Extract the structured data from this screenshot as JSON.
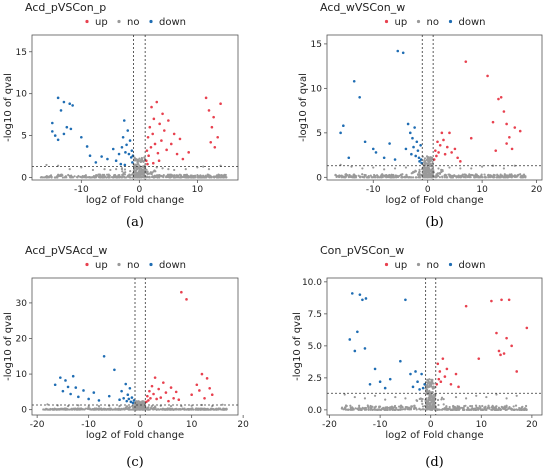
{
  "legend": {
    "up": "up",
    "no": "no",
    "down": "down"
  },
  "colors": {
    "up": "#e8414f",
    "no": "#9a9a9a",
    "down": "#1f6db3",
    "frame": "#555555",
    "guide": "#333333"
  },
  "chart_data": [
    {
      "type": "scatter",
      "caption": "(a)",
      "title": "Acd_pVSCon_p",
      "xlabel": "log2 of Fold change",
      "ylabel": "-log10 of qval",
      "xlim": [
        -18.5,
        17
      ],
      "ylim": [
        -0.3,
        17
      ],
      "xticks": [
        -10,
        0,
        10
      ],
      "yticks": [
        0,
        5,
        10,
        15
      ],
      "ytick_labels": [
        "0",
        "5",
        "10",
        "15"
      ],
      "thresholds": {
        "x": [
          -1,
          1
        ],
        "y": 1.3
      },
      "down_points": [
        [
          -15,
          5.5
        ],
        [
          -15,
          6.5
        ],
        [
          -14.5,
          5.0
        ],
        [
          -14,
          9.5
        ],
        [
          -13.5,
          8.0
        ],
        [
          -13,
          9.0
        ],
        [
          -12,
          8.8
        ],
        [
          -11.5,
          8.6
        ],
        [
          -13,
          5.2
        ],
        [
          -12.5,
          6.0
        ],
        [
          -11.8,
          5.8
        ],
        [
          -14,
          4.5
        ],
        [
          -10,
          4.8
        ],
        [
          -9,
          3.7
        ],
        [
          -8.5,
          2.6
        ],
        [
          -7.5,
          1.8
        ],
        [
          -6.5,
          2.5
        ],
        [
          -5.5,
          2.2
        ],
        [
          -4.5,
          3.4
        ],
        [
          -4,
          2.0
        ],
        [
          -3.5,
          2.8
        ],
        [
          -3,
          3.6
        ],
        [
          -2.8,
          4.8
        ],
        [
          -2.6,
          6.8
        ],
        [
          -2.4,
          3.0
        ],
        [
          -2.2,
          3.9
        ],
        [
          -2,
          5.6
        ],
        [
          -1.8,
          2.8
        ],
        [
          -1.6,
          4.4
        ],
        [
          -1.4,
          2.4
        ],
        [
          -1.3,
          3.2
        ],
        [
          -1.2,
          1.8
        ],
        [
          -1.1,
          2.6
        ],
        [
          -3.2,
          1.6
        ],
        [
          -2.5,
          1.5
        ]
      ],
      "up_points": [
        [
          1.2,
          2.0
        ],
        [
          1.3,
          3.2
        ],
        [
          1.5,
          4.8
        ],
        [
          1.6,
          2.6
        ],
        [
          1.8,
          6.0
        ],
        [
          2,
          3.6
        ],
        [
          2.1,
          8.4
        ],
        [
          2.3,
          5.2
        ],
        [
          2.5,
          7.0
        ],
        [
          2.7,
          4.0
        ],
        [
          3,
          9.0
        ],
        [
          3.2,
          2.9
        ],
        [
          3.5,
          6.4
        ],
        [
          3.8,
          4.4
        ],
        [
          4,
          7.6
        ],
        [
          4.3,
          5.6
        ],
        [
          4.7,
          3.3
        ],
        [
          5,
          6.8
        ],
        [
          5.5,
          4.0
        ],
        [
          6,
          5.2
        ],
        [
          6.5,
          2.8
        ],
        [
          7,
          4.6
        ],
        [
          7.5,
          2.2
        ],
        [
          8.5,
          3.0
        ],
        [
          11.5,
          9.5
        ],
        [
          12,
          8.0
        ],
        [
          12.5,
          6.0
        ],
        [
          12.8,
          7.2
        ],
        [
          13,
          3.6
        ],
        [
          13.5,
          4.8
        ],
        [
          14,
          8.8
        ],
        [
          12.3,
          4.2
        ],
        [
          1.4,
          1.6
        ],
        [
          2.4,
          1.7
        ],
        [
          3.4,
          2.0
        ]
      ],
      "no_spread": [
        [
          -16,
          1.5
        ],
        [
          -14,
          1.4
        ],
        [
          -12,
          1.0
        ],
        [
          -10,
          1.2
        ],
        [
          -8,
          0.9
        ],
        [
          -6,
          1.0
        ],
        [
          -5,
          0.9
        ],
        [
          -4,
          1.0
        ],
        [
          -3,
          1.1
        ],
        [
          3,
          1.2
        ],
        [
          4,
          1.1
        ],
        [
          5,
          1.0
        ],
        [
          6,
          0.9
        ],
        [
          8,
          1.0
        ],
        [
          10,
          1.2
        ],
        [
          11,
          1.3
        ],
        [
          12,
          1.0
        ],
        [
          14,
          1.4
        ]
      ],
      "no_cloud": {
        "x_range": [
          -17,
          15
        ],
        "count": 420,
        "seed": 11
      }
    },
    {
      "type": "scatter",
      "caption": "(b)",
      "title": "Acd_wVSCon_w",
      "xlabel": "log2 of Fold change",
      "ylabel": "-log10 of qval",
      "xlim": [
        -18.5,
        21
      ],
      "ylim": [
        -0.3,
        16
      ],
      "xticks": [
        -10,
        0,
        10,
        20
      ],
      "yticks": [
        0,
        5,
        10,
        15
      ],
      "ytick_labels": [
        "0",
        "5",
        "10",
        "15"
      ],
      "thresholds": {
        "x": [
          -1,
          1
        ],
        "y": 1.3
      },
      "down_points": [
        [
          -16,
          5.0
        ],
        [
          -15.5,
          5.8
        ],
        [
          -14.5,
          2.2
        ],
        [
          -13.5,
          10.8
        ],
        [
          -12.5,
          9.0
        ],
        [
          -11.5,
          4.0
        ],
        [
          -10,
          3.2
        ],
        [
          -9.5,
          2.8
        ],
        [
          -8,
          2.2
        ],
        [
          -7,
          3.8
        ],
        [
          -6,
          2.0
        ],
        [
          -5.5,
          14.2
        ],
        [
          -4.5,
          14.0
        ],
        [
          -4,
          3.2
        ],
        [
          -3.6,
          6.0
        ],
        [
          -3.2,
          5.0
        ],
        [
          -3,
          2.6
        ],
        [
          -2.8,
          4.4
        ],
        [
          -2.6,
          3.4
        ],
        [
          -2.4,
          5.6
        ],
        [
          -2.2,
          2.4
        ],
        [
          -2,
          4.0
        ],
        [
          -1.8,
          3.0
        ],
        [
          -1.6,
          2.2
        ],
        [
          -1.5,
          1.8
        ],
        [
          -1.3,
          3.6
        ],
        [
          -1.2,
          2.0
        ],
        [
          -1.1,
          1.6
        ]
      ],
      "up_points": [
        [
          1.2,
          2.0
        ],
        [
          1.4,
          3.0
        ],
        [
          1.6,
          2.4
        ],
        [
          1.8,
          4.0
        ],
        [
          2,
          2.8
        ],
        [
          2.3,
          3.6
        ],
        [
          2.6,
          5.0
        ],
        [
          2.9,
          4.2
        ],
        [
          3.2,
          2.6
        ],
        [
          3.6,
          3.4
        ],
        [
          4,
          5.0
        ],
        [
          4.4,
          2.8
        ],
        [
          5,
          3.2
        ],
        [
          5.5,
          2.2
        ],
        [
          6,
          1.8
        ],
        [
          7,
          13.0
        ],
        [
          8,
          4.4
        ],
        [
          11,
          11.4
        ],
        [
          12,
          6.2
        ],
        [
          13,
          8.8
        ],
        [
          13.5,
          9.0
        ],
        [
          14,
          7.4
        ],
        [
          14.5,
          6.0
        ],
        [
          15,
          4.5
        ],
        [
          16,
          5.6
        ],
        [
          17,
          5.2
        ],
        [
          15.5,
          3.2
        ],
        [
          12.5,
          3.0
        ],
        [
          14.5,
          3.8
        ]
      ],
      "no_spread": [
        [
          -16,
          1.4
        ],
        [
          -14,
          1.2
        ],
        [
          -12,
          1.0
        ],
        [
          -10,
          1.1
        ],
        [
          -8,
          0.9
        ],
        [
          -6,
          1.0
        ],
        [
          -4,
          1.1
        ],
        [
          4,
          1.1
        ],
        [
          6,
          1.0
        ],
        [
          8,
          1.0
        ],
        [
          10,
          1.2
        ],
        [
          12,
          1.3
        ],
        [
          14,
          1.0
        ],
        [
          16,
          1.3
        ]
      ],
      "no_cloud": {
        "x_range": [
          -17,
          18
        ],
        "count": 420,
        "seed": 23
      }
    },
    {
      "type": "scatter",
      "caption": "(c)",
      "title": "Acd_pVSAcd_w",
      "xlabel": "log2 of Fold change",
      "ylabel": "-log10 of qval",
      "xlim": [
        -21,
        19
      ],
      "ylim": [
        -1.5,
        37
      ],
      "xticks": [
        -20,
        -10,
        0,
        10,
        20
      ],
      "yticks": [
        0,
        10,
        20,
        30
      ],
      "ytick_labels": [
        "0",
        "10",
        "20",
        "30"
      ],
      "thresholds": {
        "x": [
          -1,
          1
        ],
        "y": 1.3
      },
      "down_points": [
        [
          -16.5,
          7.0
        ],
        [
          -15.5,
          9.0
        ],
        [
          -15,
          5.2
        ],
        [
          -14.5,
          8.2
        ],
        [
          -14,
          6.4
        ],
        [
          -13.5,
          4.4
        ],
        [
          -13,
          9.4
        ],
        [
          -12.5,
          6.2
        ],
        [
          -12,
          3.6
        ],
        [
          -11,
          5.4
        ],
        [
          -10,
          3.0
        ],
        [
          -9,
          4.8
        ],
        [
          -8,
          2.6
        ],
        [
          -7,
          15.0
        ],
        [
          -6,
          3.8
        ],
        [
          -5,
          11.2
        ],
        [
          -4,
          2.8
        ],
        [
          -3.6,
          5.2
        ],
        [
          -3.2,
          3.2
        ],
        [
          -2.8,
          7.2
        ],
        [
          -2.6,
          2.4
        ],
        [
          -2.4,
          4.2
        ],
        [
          -2.2,
          3.0
        ],
        [
          -2,
          6.0
        ],
        [
          -1.8,
          2.2
        ],
        [
          -1.6,
          3.4
        ],
        [
          -1.4,
          1.9
        ],
        [
          -1.2,
          2.6
        ]
      ],
      "up_points": [
        [
          1.2,
          2.2
        ],
        [
          1.4,
          3.8
        ],
        [
          1.6,
          2.6
        ],
        [
          1.8,
          5.2
        ],
        [
          2,
          3.2
        ],
        [
          2.3,
          6.6
        ],
        [
          2.6,
          4.4
        ],
        [
          2.9,
          9.0
        ],
        [
          3.2,
          3.0
        ],
        [
          3.6,
          5.8
        ],
        [
          4,
          3.4
        ],
        [
          4.5,
          7.6
        ],
        [
          5,
          4.8
        ],
        [
          5.5,
          2.4
        ],
        [
          6,
          6.2
        ],
        [
          6.5,
          3.2
        ],
        [
          7,
          5.0
        ],
        [
          7.5,
          2.8
        ],
        [
          8,
          33.0
        ],
        [
          9,
          31.0
        ],
        [
          10,
          4.2
        ],
        [
          11,
          7.0
        ],
        [
          12,
          10.0
        ],
        [
          13,
          8.8
        ],
        [
          13.5,
          6.0
        ],
        [
          14,
          4.2
        ],
        [
          12.5,
          3.2
        ],
        [
          11.5,
          5.4
        ]
      ],
      "no_spread": [
        [
          -18,
          1.5
        ],
        [
          -16,
          1.2
        ],
        [
          -14,
          1.0
        ],
        [
          -12,
          1.2
        ],
        [
          -10,
          0.9
        ],
        [
          -8,
          1.0
        ],
        [
          -6,
          1.1
        ],
        [
          -4,
          1.0
        ],
        [
          4,
          1.1
        ],
        [
          6,
          1.0
        ],
        [
          8,
          1.0
        ],
        [
          10,
          1.1
        ],
        [
          12,
          1.3
        ],
        [
          14,
          1.0
        ],
        [
          16,
          1.4
        ]
      ],
      "no_cloud": {
        "x_range": [
          -19,
          17
        ],
        "count": 420,
        "seed": 37
      }
    },
    {
      "type": "scatter",
      "caption": "(d)",
      "title": "Con_pVSCon_w",
      "xlabel": "log2 of Fold change",
      "ylabel": "-log10 of qval",
      "xlim": [
        -20.5,
        22
      ],
      "ylim": [
        -0.4,
        10.3
      ],
      "xticks": [
        -20,
        -10,
        0,
        10,
        20
      ],
      "yticks": [
        0,
        2.5,
        5,
        7.5,
        10
      ],
      "ytick_labels": [
        "0.0",
        "2.5",
        "5.0",
        "7.5",
        "10.0"
      ],
      "thresholds": {
        "x": [
          -1,
          1
        ],
        "y": 1.3
      },
      "down_points": [
        [
          -16,
          5.5
        ],
        [
          -15.5,
          9.1
        ],
        [
          -15,
          4.6
        ],
        [
          -14.5,
          6.1
        ],
        [
          -14,
          9.0
        ],
        [
          -13.5,
          8.6
        ],
        [
          -13,
          4.8
        ],
        [
          -12.8,
          8.7
        ],
        [
          -12,
          2.0
        ],
        [
          -11,
          3.2
        ],
        [
          -10,
          2.2
        ],
        [
          -9,
          1.7
        ],
        [
          -8,
          2.4
        ],
        [
          -6,
          3.8
        ],
        [
          -5,
          8.6
        ],
        [
          -4,
          2.8
        ],
        [
          -3.5,
          1.8
        ],
        [
          -3,
          3.0
        ],
        [
          -2.6,
          2.2
        ],
        [
          -2.2,
          1.6
        ],
        [
          -1.8,
          2.8
        ],
        [
          -1.5,
          1.7
        ],
        [
          -1.2,
          2.0
        ]
      ],
      "up_points": [
        [
          1.2,
          2.0
        ],
        [
          1.4,
          3.6
        ],
        [
          1.6,
          2.4
        ],
        [
          1.8,
          3.0
        ],
        [
          2,
          2.2
        ],
        [
          2.4,
          4.0
        ],
        [
          2.8,
          2.6
        ],
        [
          3.2,
          3.2
        ],
        [
          4,
          2.0
        ],
        [
          5,
          2.8
        ],
        [
          5.5,
          1.8
        ],
        [
          7,
          8.1
        ],
        [
          9.5,
          4.0
        ],
        [
          12,
          8.5
        ],
        [
          13,
          6.0
        ],
        [
          13.5,
          4.6
        ],
        [
          14,
          8.6
        ],
        [
          14.5,
          4.4
        ],
        [
          15,
          5.6
        ],
        [
          16,
          5.0
        ],
        [
          17,
          3.0
        ],
        [
          19,
          6.4
        ],
        [
          15.5,
          8.6
        ],
        [
          13.8,
          4.3
        ]
      ],
      "no_spread": [
        [
          -17,
          1.2
        ],
        [
          -15,
          1.0
        ],
        [
          -13,
          0.9
        ],
        [
          -11,
          1.1
        ],
        [
          -9,
          0.8
        ],
        [
          -7,
          1.0
        ],
        [
          -5,
          0.9
        ],
        [
          5,
          1.0
        ],
        [
          7,
          0.9
        ],
        [
          9,
          1.1
        ],
        [
          11,
          1.0
        ],
        [
          13,
          1.2
        ],
        [
          15,
          0.9
        ],
        [
          17,
          1.1
        ]
      ],
      "no_cloud": {
        "x_range": [
          -18,
          19
        ],
        "count": 420,
        "seed": 53
      }
    }
  ]
}
